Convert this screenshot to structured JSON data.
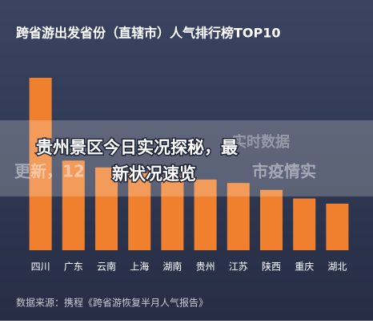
{
  "chart_data": {
    "type": "bar",
    "title": "跨省游出发省份（直辖市）人气排行榜TOP10",
    "categories": [
      "四川",
      "广东",
      "云南",
      "上海",
      "湖南",
      "贵州",
      "江苏",
      "陕西",
      "重庆",
      "湖北"
    ],
    "values": [
      100,
      52,
      48,
      45,
      43,
      41,
      39,
      35,
      30,
      27
    ],
    "color": "#f07f2e",
    "ylim": [
      0,
      100
    ],
    "source": "数据来源：携程《跨省游恢复半月人气报告》"
  },
  "overlay": {
    "background_fragments": [
      "实时数据",
      "更新，12",
      "市疫情实"
    ],
    "headline": [
      "贵州景区今日实况探秘，最",
      "新状况速览"
    ]
  }
}
